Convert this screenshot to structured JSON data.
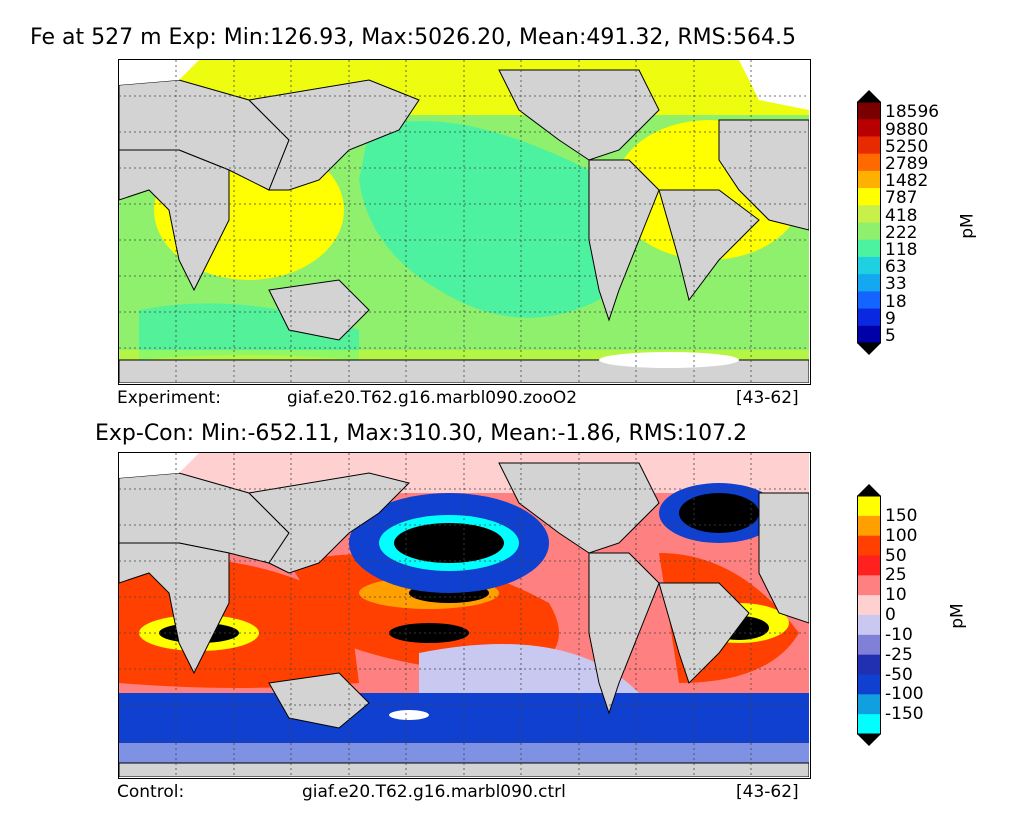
{
  "panel_top": {
    "title": "Fe at 527 m Exp: Min:126.93, Max:5026.20, Mean:491.32, RMS:564.5",
    "caption_left": "Experiment:",
    "caption_mid": "giaf.e20.T62.g16.marbl090.zooO2",
    "caption_right": "[43-62]",
    "colorbar": {
      "unit": "pM",
      "labels": [
        "18596",
        "9880",
        "5250",
        "2789",
        "1482",
        "787",
        "418",
        "222",
        "118",
        "63",
        "33",
        "18",
        "9",
        "5"
      ],
      "colors": [
        "#7a0000",
        "#b80000",
        "#e82a00",
        "#ff6a00",
        "#ffb000",
        "#ffff00",
        "#c8f04a",
        "#8ef06c",
        "#4cf2a0",
        "#1ed0e0",
        "#14a8f0",
        "#1464ff",
        "#0a28e0",
        "#0000a8"
      ],
      "extend_top_color": "#000000",
      "extend_bottom_color": "#000000"
    }
  },
  "panel_bottom": {
    "title": "Exp-Con: Min:-652.11, Max:310.30, Mean:-1.86, RMS:107.2",
    "caption_left": "Control:",
    "caption_mid": "giaf.e20.T62.g16.marbl090.ctrl",
    "caption_right": "[43-62]",
    "colorbar": {
      "unit": "pM",
      "labels": [
        "150",
        "100",
        "50",
        "25",
        "10",
        "0",
        "-10",
        "-25",
        "-50",
        "-100",
        "-150"
      ],
      "colors": [
        "#ffff00",
        "#ffa000",
        "#ff4000",
        "#ff2020",
        "#ff8080",
        "#ffd0d0",
        "#c8c8f0",
        "#8080d8",
        "#2030b0",
        "#1040d0",
        "#10a0e0",
        "#00ffff"
      ],
      "extend_top_color": "#000000",
      "extend_bottom_color": "#000000"
    }
  },
  "map_colors": {
    "land": "#d3d3d3",
    "no_data": "#ffffff",
    "coast": "#000000",
    "grid": "#444444"
  }
}
